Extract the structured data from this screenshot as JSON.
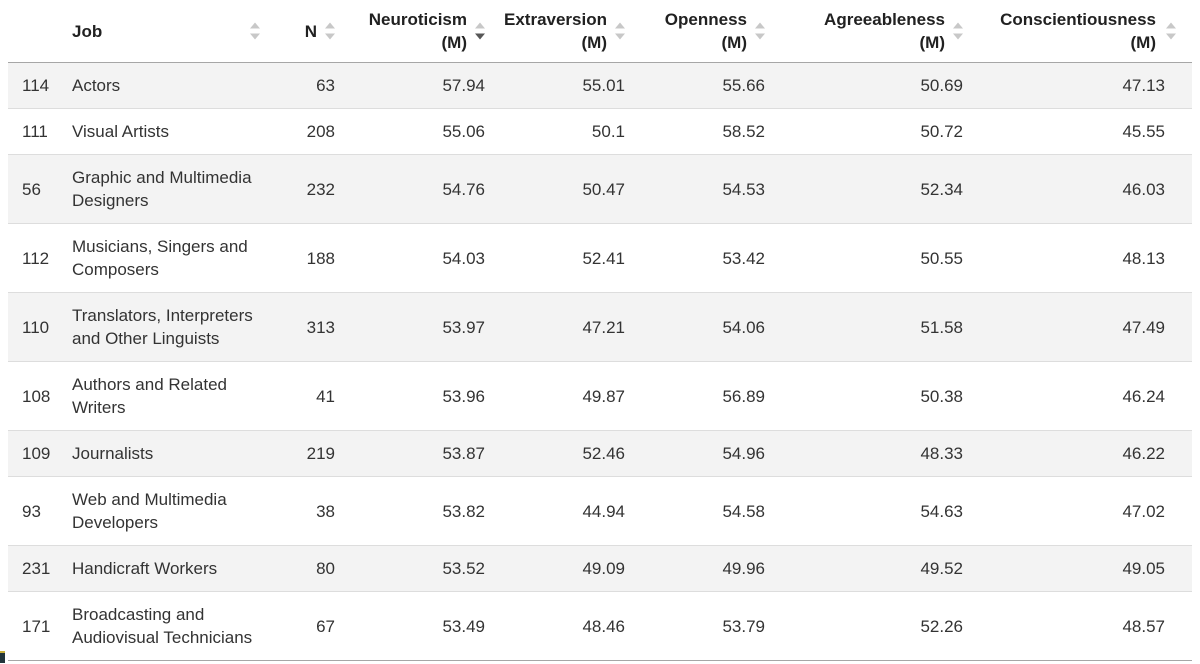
{
  "table": {
    "columns": [
      {
        "key": "id",
        "label": "",
        "sublabel": "",
        "sortable": false,
        "sort": "none"
      },
      {
        "key": "job",
        "label": "Job",
        "sublabel": "",
        "sortable": true,
        "sort": "none"
      },
      {
        "key": "n",
        "label": "N",
        "sublabel": "",
        "sortable": true,
        "sort": "none"
      },
      {
        "key": "neuroticism",
        "label": "Neuroticism",
        "sublabel": "(M)",
        "sortable": true,
        "sort": "desc"
      },
      {
        "key": "extraversion",
        "label": "Extraversion",
        "sublabel": "(M)",
        "sortable": true,
        "sort": "none"
      },
      {
        "key": "openness",
        "label": "Openness",
        "sublabel": "(M)",
        "sortable": true,
        "sort": "none"
      },
      {
        "key": "agreeableness",
        "label": "Agreeableness",
        "sublabel": "(M)",
        "sortable": true,
        "sort": "none"
      },
      {
        "key": "conscientiousness",
        "label": "Conscientiousness",
        "sublabel": "(M)",
        "sortable": true,
        "sort": "none"
      }
    ],
    "rows": [
      {
        "id": "114",
        "job": "Actors",
        "n": "63",
        "neuroticism": "57.94",
        "extraversion": "55.01",
        "openness": "55.66",
        "agreeableness": "50.69",
        "conscientiousness": "47.13"
      },
      {
        "id": "111",
        "job": "Visual Artists",
        "n": "208",
        "neuroticism": "55.06",
        "extraversion": "50.1",
        "openness": "58.52",
        "agreeableness": "50.72",
        "conscientiousness": "45.55"
      },
      {
        "id": "56",
        "job": "Graphic and Multimedia Designers",
        "n": "232",
        "neuroticism": "54.76",
        "extraversion": "50.47",
        "openness": "54.53",
        "agreeableness": "52.34",
        "conscientiousness": "46.03"
      },
      {
        "id": "112",
        "job": "Musicians, Singers and Composers",
        "n": "188",
        "neuroticism": "54.03",
        "extraversion": "52.41",
        "openness": "53.42",
        "agreeableness": "50.55",
        "conscientiousness": "48.13"
      },
      {
        "id": "110",
        "job": "Translators, Interpreters and Other Linguists",
        "n": "313",
        "neuroticism": "53.97",
        "extraversion": "47.21",
        "openness": "54.06",
        "agreeableness": "51.58",
        "conscientiousness": "47.49"
      },
      {
        "id": "108",
        "job": "Authors and Related Writers",
        "n": "41",
        "neuroticism": "53.96",
        "extraversion": "49.87",
        "openness": "56.89",
        "agreeableness": "50.38",
        "conscientiousness": "46.24"
      },
      {
        "id": "109",
        "job": "Journalists",
        "n": "219",
        "neuroticism": "53.87",
        "extraversion": "52.46",
        "openness": "54.96",
        "agreeableness": "48.33",
        "conscientiousness": "46.22"
      },
      {
        "id": "93",
        "job": "Web and Multimedia Developers",
        "n": "38",
        "neuroticism": "53.82",
        "extraversion": "44.94",
        "openness": "54.58",
        "agreeableness": "54.63",
        "conscientiousness": "47.02"
      },
      {
        "id": "231",
        "job": "Handicraft Workers",
        "n": "80",
        "neuroticism": "53.52",
        "extraversion": "49.09",
        "openness": "49.96",
        "agreeableness": "49.52",
        "conscientiousness": "49.05"
      },
      {
        "id": "171",
        "job": "Broadcasting and Audiovisual Technicians",
        "n": "67",
        "neuroticism": "53.49",
        "extraversion": "48.46",
        "openness": "53.79",
        "agreeableness": "52.26",
        "conscientiousness": "48.57"
      }
    ]
  },
  "colors": {
    "stripe_row": "#f3f3f3",
    "row_divider": "#dddddd",
    "header_divider": "#a6a6a6",
    "sort_icon_inactive": "#c8c8c8",
    "sort_icon_active": "#575757",
    "header_text": "#212121",
    "body_text": "#333333"
  }
}
